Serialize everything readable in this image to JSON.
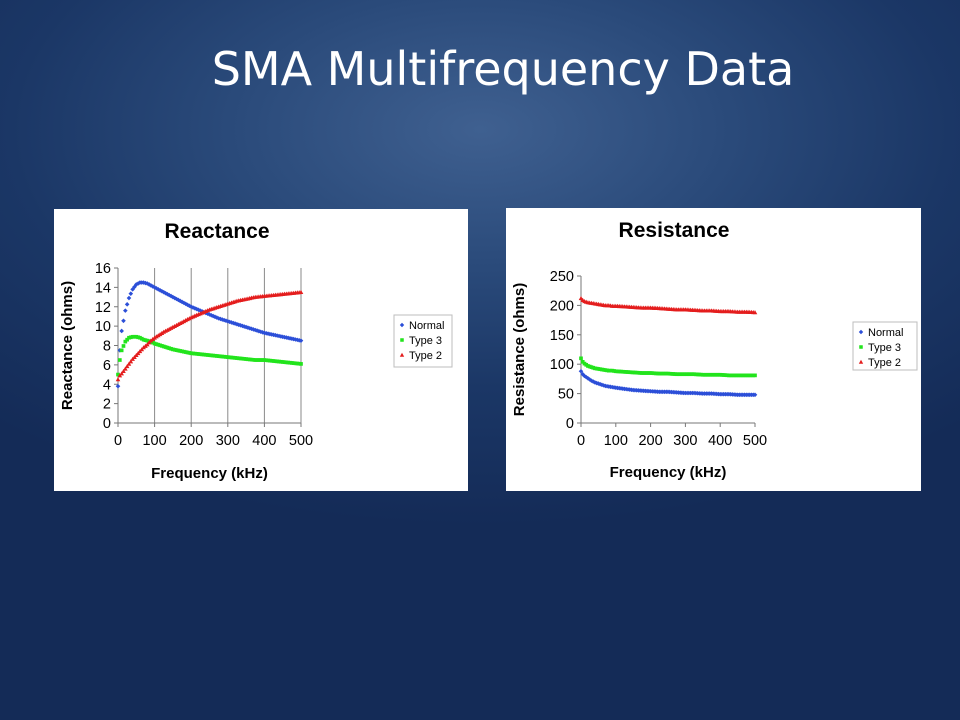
{
  "slide": {
    "title": "SMA Multifrequency Data"
  },
  "chart_data": [
    {
      "type": "scatter",
      "title": "Reactance",
      "xlabel": "Frequency (kHz)",
      "ylabel": "Reactance (ohms)",
      "xlim": [
        0,
        500
      ],
      "ylim": [
        0,
        16
      ],
      "xticks": [
        0,
        100,
        200,
        300,
        400,
        500
      ],
      "yticks": [
        0,
        2,
        4,
        6,
        8,
        10,
        12,
        14,
        16
      ],
      "grid": "vertical",
      "legend_position": "right",
      "series": [
        {
          "name": "Normal",
          "color": "#2c4fd8",
          "marker": "diamond",
          "x": [
            0,
            5,
            10,
            20,
            30,
            40,
            50,
            60,
            70,
            80,
            90,
            100,
            125,
            150,
            175,
            200,
            225,
            250,
            275,
            300,
            325,
            350,
            375,
            400,
            425,
            450,
            475,
            500
          ],
          "y": [
            3.8,
            7.5,
            9.5,
            11.6,
            12.9,
            13.8,
            14.3,
            14.5,
            14.5,
            14.4,
            14.2,
            14.0,
            13.5,
            13.0,
            12.5,
            12.0,
            11.6,
            11.2,
            10.8,
            10.5,
            10.2,
            9.9,
            9.6,
            9.3,
            9.1,
            8.9,
            8.7,
            8.5
          ]
        },
        {
          "name": "Type 3",
          "color": "#22e41c",
          "marker": "square",
          "x": [
            0,
            5,
            10,
            20,
            30,
            40,
            50,
            60,
            70,
            80,
            90,
            100,
            125,
            150,
            175,
            200,
            225,
            250,
            275,
            300,
            325,
            350,
            375,
            400,
            425,
            450,
            475,
            500
          ],
          "y": [
            5.0,
            6.5,
            7.5,
            8.4,
            8.8,
            8.9,
            8.9,
            8.8,
            8.6,
            8.5,
            8.4,
            8.2,
            7.9,
            7.6,
            7.4,
            7.2,
            7.1,
            7.0,
            6.9,
            6.8,
            6.7,
            6.6,
            6.5,
            6.5,
            6.4,
            6.3,
            6.2,
            6.1
          ]
        },
        {
          "name": "Type 2",
          "color": "#e41d1d",
          "marker": "triangle",
          "x": [
            0,
            5,
            10,
            20,
            30,
            40,
            50,
            60,
            70,
            80,
            90,
            100,
            125,
            150,
            175,
            200,
            225,
            250,
            275,
            300,
            325,
            350,
            375,
            400,
            425,
            450,
            475,
            500
          ],
          "y": [
            4.5,
            4.9,
            5.1,
            5.6,
            6.1,
            6.6,
            7.0,
            7.4,
            7.8,
            8.1,
            8.5,
            8.8,
            9.4,
            9.9,
            10.4,
            10.9,
            11.3,
            11.7,
            12.0,
            12.3,
            12.6,
            12.8,
            13.0,
            13.1,
            13.2,
            13.3,
            13.4,
            13.5
          ]
        }
      ]
    },
    {
      "type": "scatter",
      "title": "Resistance",
      "xlabel": "Frequency (kHz)",
      "ylabel": "Resistance (ohms)",
      "xlim": [
        0,
        500
      ],
      "ylim": [
        0,
        250
      ],
      "xticks": [
        0,
        100,
        200,
        300,
        400,
        500
      ],
      "yticks": [
        0,
        50,
        100,
        150,
        200,
        250
      ],
      "grid": "none",
      "legend_position": "right",
      "series": [
        {
          "name": "Normal",
          "color": "#2c4fd8",
          "marker": "diamond",
          "x": [
            0,
            5,
            10,
            20,
            30,
            40,
            50,
            60,
            70,
            80,
            90,
            100,
            125,
            150,
            175,
            200,
            225,
            250,
            275,
            300,
            325,
            350,
            375,
            400,
            425,
            450,
            475,
            500
          ],
          "y": [
            88,
            83,
            80,
            76,
            72,
            69,
            67,
            65,
            63,
            62,
            61,
            60,
            58,
            56,
            55,
            54,
            53,
            53,
            52,
            51,
            51,
            50,
            50,
            49,
            49,
            48,
            48,
            48
          ]
        },
        {
          "name": "Type 3",
          "color": "#22e41c",
          "marker": "square",
          "x": [
            0,
            5,
            10,
            20,
            30,
            40,
            50,
            60,
            70,
            80,
            90,
            100,
            125,
            150,
            175,
            200,
            225,
            250,
            275,
            300,
            325,
            350,
            375,
            400,
            425,
            450,
            475,
            500
          ],
          "y": [
            110,
            104,
            101,
            97,
            95,
            93,
            92,
            91,
            90,
            89,
            89,
            88,
            87,
            86,
            85,
            85,
            84,
            84,
            83,
            83,
            83,
            82,
            82,
            82,
            81,
            81,
            81,
            81
          ]
        },
        {
          "name": "Type 2",
          "color": "#e41d1d",
          "marker": "triangle",
          "x": [
            0,
            5,
            10,
            20,
            30,
            40,
            50,
            60,
            70,
            80,
            90,
            100,
            125,
            150,
            175,
            200,
            225,
            250,
            275,
            300,
            325,
            350,
            375,
            400,
            425,
            450,
            475,
            500
          ],
          "y": [
            212,
            209,
            207,
            205,
            204,
            203,
            202,
            201,
            200,
            200,
            199,
            199,
            198,
            197,
            196,
            196,
            195,
            194,
            193,
            193,
            192,
            191,
            191,
            190,
            190,
            189,
            189,
            188
          ]
        }
      ]
    }
  ]
}
